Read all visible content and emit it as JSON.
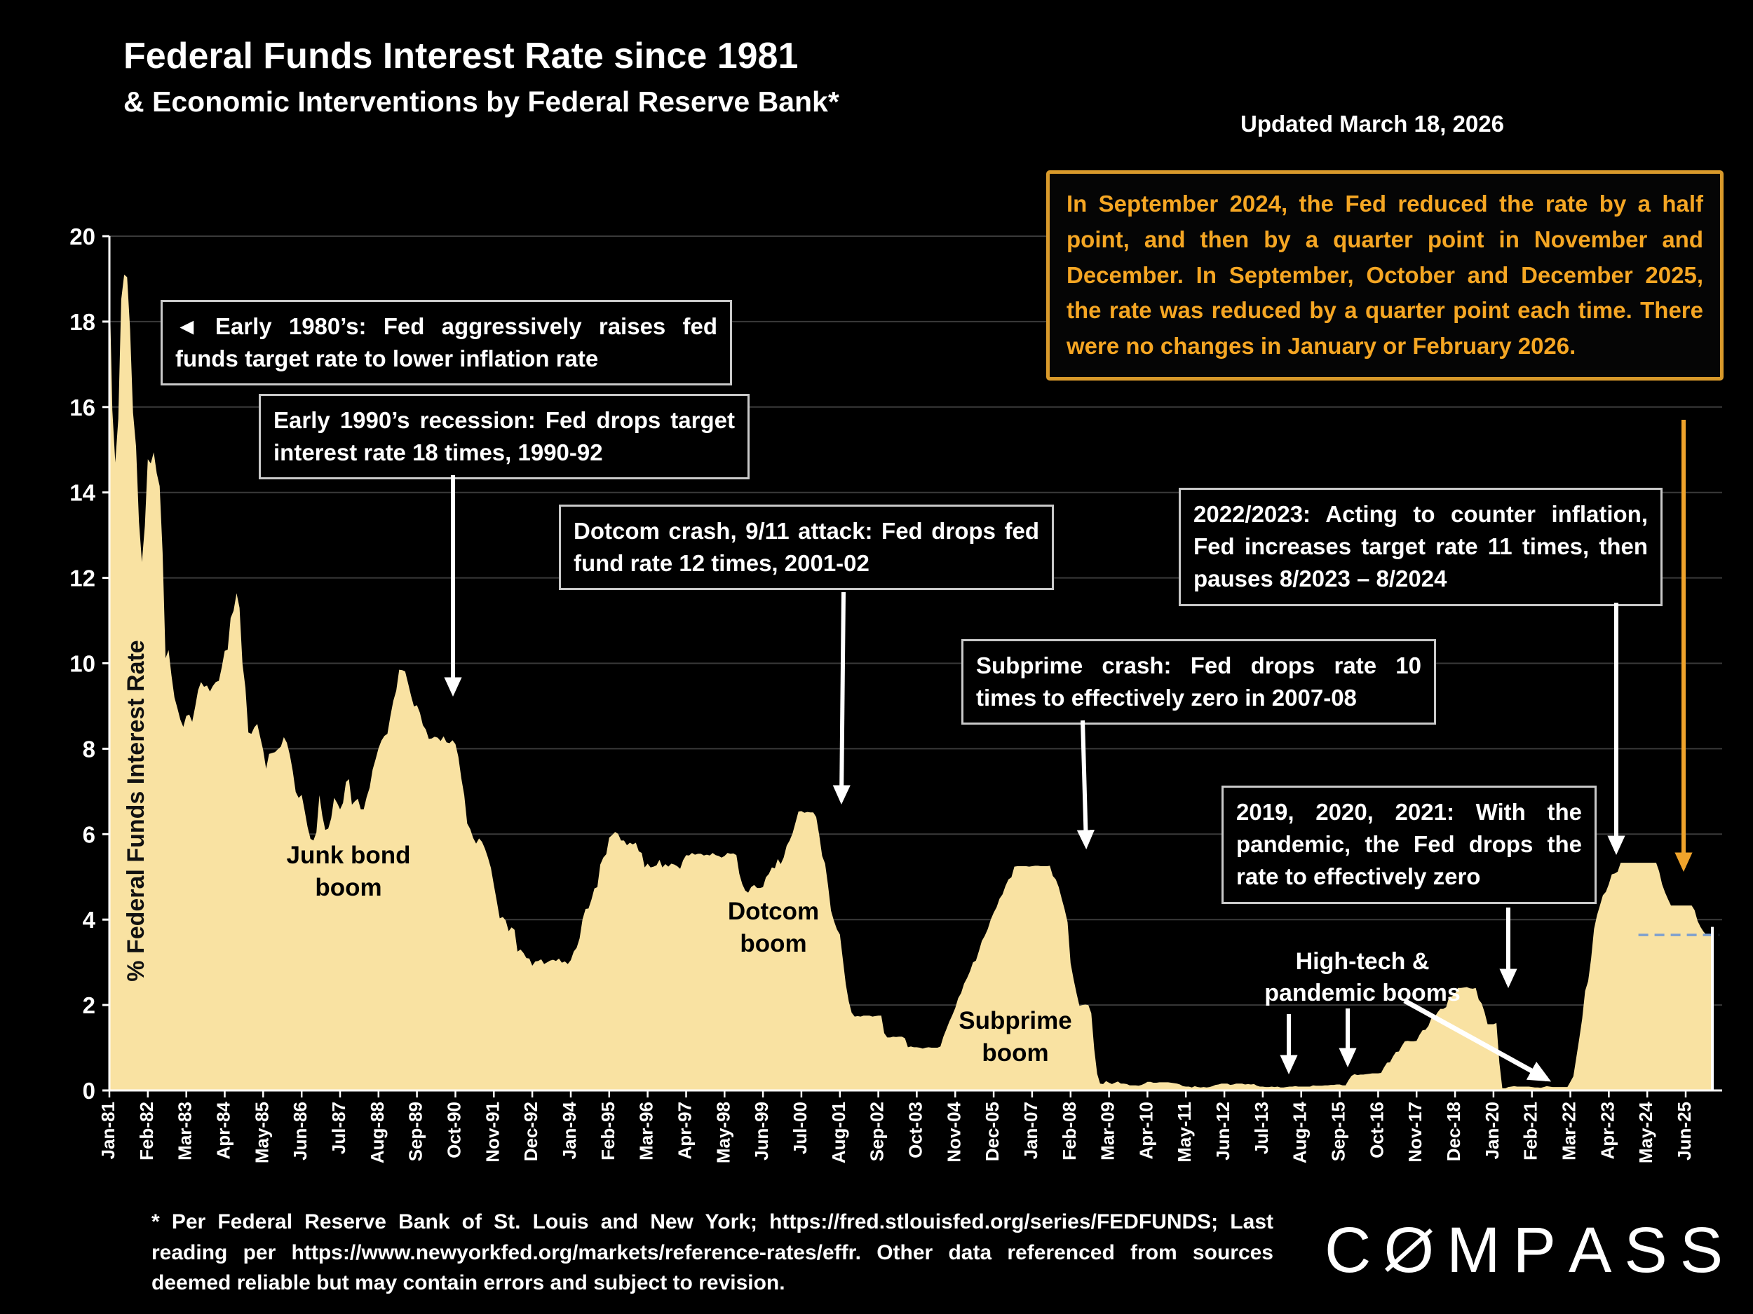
{
  "header": {
    "title": "Federal Funds Interest Rate since 1981",
    "subtitle": "& Economic Interventions by Federal Reserve Bank*",
    "updated": "Updated March 18, 2026"
  },
  "note_box": {
    "text": "In September 2024, the Fed reduced the rate by a half point, and then by a quarter point in November and December. In September, October and December 2025, the rate was reduced by a quarter point each time. There were no changes in January or February 2026.",
    "text_color": "#F5A623",
    "border_color": "#D99A2B"
  },
  "annotations": {
    "early_1980s": "◄ Early 1980’s: Fed aggressively raises fed funds target rate to lower inflation rate",
    "early_1990s": "Early 1990’s recession: Fed drops target interest rate 18 times, 1990-92",
    "dotcom_crash": "Dotcom crash, 9/11 attack: Fed drops fed fund rate 12 times, 2001-02",
    "subprime_crash": "Subprime crash: Fed drops rate 10 times to effectively zero in 2007-08",
    "inflation_2022_2023": "2022/2023: Acting to counter inflation, Fed increases target rate 11 times, then pauses 8/2023 – 8/2024",
    "pandemic_2019": "2019, 2020, 2021: With the pandemic, the Fed drops the rate to effectively zero",
    "hightech_pandemic_booms": "High-tech & pandemic booms",
    "junk_bond_boom": "Junk bond boom",
    "dotcom_boom": "Dotcom boom",
    "subprime_boom": "Subprime boom"
  },
  "chart_data": {
    "type": "area",
    "title": "Federal Funds Interest Rate since 1981",
    "ylabel": "% Federal Funds Interest Rate",
    "ylim": [
      0,
      20
    ],
    "ytick_step": 2,
    "grid": true,
    "area_color": "#F9E2A2",
    "x_start": "1981-01",
    "x_end": "2026-03",
    "x_tick_interval_months": 13,
    "x_tick_labels": [
      "Jan-81",
      "Feb-82",
      "Mar-83",
      "Apr-84",
      "May-85",
      "Jun-86",
      "Jul-87",
      "Aug-88",
      "Sep-89",
      "Oct-90",
      "Nov-91",
      "Dec-92",
      "Jan-94",
      "Feb-95",
      "Mar-96",
      "Apr-97",
      "May-98",
      "Jun-99",
      "Jul-00",
      "Aug-01",
      "Sep-02",
      "Oct-03",
      "Nov-04",
      "Dec-05",
      "Jan-07",
      "Feb-08",
      "Mar-09",
      "Apr-10",
      "May-11",
      "Jun-12",
      "Jul-13",
      "Aug-14",
      "Sep-15",
      "Oct-16",
      "Nov-17",
      "Dec-18",
      "Jan-20",
      "Feb-21",
      "Mar-22",
      "Apr-23",
      "May-24",
      "Jun-25"
    ],
    "dashed_reference_line": {
      "value": 3.64,
      "from_month_index": 517,
      "color": "#7EA0CE"
    },
    "last_reading_marker": {
      "month_index": 542,
      "value": 3.83
    },
    "values_monthly": [
      19.08,
      15.93,
      14.7,
      15.72,
      18.52,
      19.1,
      19.04,
      17.82,
      15.87,
      15.08,
      13.31,
      12.37,
      13.22,
      14.78,
      14.68,
      14.94,
      14.45,
      14.15,
      12.59,
      10.12,
      10.31,
      9.71,
      9.2,
      8.95,
      8.68,
      8.51,
      8.77,
      8.8,
      8.63,
      8.98,
      9.37,
      9.56,
      9.45,
      9.48,
      9.34,
      9.47,
      9.56,
      9.59,
      9.91,
      10.29,
      10.32,
      11.06,
      11.23,
      11.64,
      11.3,
      9.99,
      9.43,
      8.38,
      8.35,
      8.5,
      8.58,
      8.27,
      7.97,
      7.53,
      7.88,
      7.9,
      7.92,
      7.99,
      8.05,
      8.27,
      8.14,
      7.86,
      7.48,
      6.99,
      6.85,
      6.92,
      6.56,
      6.17,
      5.89,
      5.85,
      6.04,
      6.91,
      6.43,
      6.1,
      6.13,
      6.37,
      6.85,
      6.73,
      6.58,
      6.73,
      7.22,
      7.29,
      6.69,
      6.77,
      6.83,
      6.58,
      6.58,
      6.87,
      7.09,
      7.51,
      7.75,
      8.01,
      8.19,
      8.3,
      8.35,
      8.76,
      9.12,
      9.36,
      9.85,
      9.84,
      9.81,
      9.53,
      9.24,
      8.99,
      9.02,
      8.84,
      8.55,
      8.45,
      8.23,
      8.24,
      8.28,
      8.26,
      8.18,
      8.29,
      8.15,
      8.13,
      8.2,
      8.11,
      7.81,
      7.31,
      6.91,
      6.25,
      6.12,
      5.91,
      5.78,
      5.9,
      5.82,
      5.66,
      5.45,
      5.21,
      4.81,
      4.43,
      4.03,
      4.06,
      3.98,
      3.73,
      3.82,
      3.76,
      3.25,
      3.3,
      3.22,
      3.1,
      3.09,
      2.92,
      3.02,
      3.03,
      3.07,
      2.96,
      3.0,
      3.04,
      3.06,
      3.03,
      3.09,
      2.99,
      3.02,
      2.96,
      3.05,
      3.25,
      3.34,
      3.56,
      4.01,
      4.25,
      4.26,
      4.47,
      4.73,
      4.76,
      5.29,
      5.45,
      5.53,
      5.92,
      5.98,
      6.05,
      6.01,
      5.85,
      5.85,
      5.74,
      5.8,
      5.76,
      5.8,
      5.6,
      5.56,
      5.22,
      5.31,
      5.22,
      5.24,
      5.27,
      5.4,
      5.22,
      5.3,
      5.24,
      5.31,
      5.29,
      5.25,
      5.19,
      5.39,
      5.51,
      5.5,
      5.56,
      5.52,
      5.54,
      5.54,
      5.5,
      5.52,
      5.5,
      5.56,
      5.51,
      5.49,
      5.45,
      5.49,
      5.56,
      5.54,
      5.55,
      5.51,
      5.07,
      4.83,
      4.68,
      4.63,
      4.76,
      4.81,
      4.74,
      4.74,
      4.76,
      4.99,
      5.07,
      5.22,
      5.2,
      5.42,
      5.3,
      5.45,
      5.73,
      5.85,
      6.02,
      6.27,
      6.53,
      6.54,
      6.5,
      6.52,
      6.51,
      6.51,
      6.4,
      5.98,
      5.49,
      5.31,
      4.8,
      4.21,
      3.97,
      3.77,
      3.65,
      3.07,
      2.49,
      2.09,
      1.82,
      1.73,
      1.74,
      1.73,
      1.75,
      1.75,
      1.75,
      1.73,
      1.74,
      1.75,
      1.75,
      1.34,
      1.24,
      1.24,
      1.26,
      1.25,
      1.26,
      1.26,
      1.22,
      1.01,
      1.03,
      1.01,
      1.01,
      1.0,
      0.98,
      1.0,
      1.01,
      1.0,
      1.0,
      1.0,
      1.03,
      1.26,
      1.43,
      1.61,
      1.76,
      1.93,
      2.16,
      2.28,
      2.5,
      2.63,
      2.79,
      3.0,
      3.04,
      3.26,
      3.5,
      3.62,
      3.78,
      4.0,
      4.16,
      4.29,
      4.49,
      4.59,
      4.79,
      4.94,
      4.99,
      5.24,
      5.25,
      5.25,
      5.25,
      5.25,
      5.24,
      5.25,
      5.26,
      5.26,
      5.25,
      5.25,
      5.25,
      5.26,
      5.02,
      4.94,
      4.76,
      4.49,
      4.24,
      3.94,
      2.98,
      2.61,
      2.28,
      1.98,
      2.0,
      2.01,
      2.0,
      1.81,
      0.97,
      0.39,
      0.16,
      0.15,
      0.22,
      0.18,
      0.15,
      0.18,
      0.21,
      0.16,
      0.16,
      0.15,
      0.12,
      0.12,
      0.12,
      0.11,
      0.13,
      0.16,
      0.2,
      0.2,
      0.18,
      0.18,
      0.19,
      0.19,
      0.19,
      0.19,
      0.18,
      0.17,
      0.16,
      0.14,
      0.1,
      0.09,
      0.09,
      0.07,
      0.1,
      0.08,
      0.07,
      0.08,
      0.07,
      0.08,
      0.1,
      0.13,
      0.14,
      0.16,
      0.16,
      0.16,
      0.13,
      0.14,
      0.16,
      0.16,
      0.16,
      0.14,
      0.15,
      0.14,
      0.15,
      0.11,
      0.09,
      0.09,
      0.08,
      0.08,
      0.09,
      0.08,
      0.09,
      0.07,
      0.07,
      0.08,
      0.09,
      0.09,
      0.1,
      0.09,
      0.09,
      0.09,
      0.09,
      0.09,
      0.12,
      0.11,
      0.11,
      0.11,
      0.12,
      0.12,
      0.13,
      0.13,
      0.14,
      0.14,
      0.12,
      0.12,
      0.24,
      0.34,
      0.38,
      0.36,
      0.37,
      0.37,
      0.38,
      0.39,
      0.4,
      0.4,
      0.4,
      0.41,
      0.54,
      0.65,
      0.66,
      0.79,
      0.9,
      0.91,
      1.04,
      1.15,
      1.16,
      1.15,
      1.15,
      1.16,
      1.3,
      1.41,
      1.42,
      1.51,
      1.69,
      1.7,
      1.82,
      1.91,
      1.91,
      1.95,
      2.19,
      2.2,
      2.27,
      2.4,
      2.4,
      2.41,
      2.42,
      2.39,
      2.38,
      2.4,
      2.13,
      2.04,
      1.83,
      1.55,
      1.55,
      1.55,
      1.58,
      0.65,
      0.05,
      0.05,
      0.08,
      0.09,
      0.1,
      0.09,
      0.09,
      0.09,
      0.09,
      0.09,
      0.08,
      0.07,
      0.07,
      0.06,
      0.08,
      0.1,
      0.09,
      0.08,
      0.08,
      0.08,
      0.08,
      0.08,
      0.08,
      0.2,
      0.33,
      0.77,
      1.21,
      1.68,
      2.33,
      2.56,
      3.08,
      3.78,
      4.1,
      4.33,
      4.57,
      4.65,
      4.83,
      5.06,
      5.08,
      5.12,
      5.33,
      5.33,
      5.33,
      5.33,
      5.33,
      5.33,
      5.33,
      5.33,
      5.33,
      5.33,
      5.33,
      5.33,
      5.33,
      5.13,
      4.83,
      4.64,
      4.48,
      4.33,
      4.33,
      4.33,
      4.33,
      4.33,
      4.33,
      4.33,
      4.33,
      4.22,
      3.97,
      3.83,
      3.72,
      3.64,
      3.64,
      3.64
    ]
  },
  "footer": {
    "disclaimer": "* Per Federal Reserve Bank of St. Louis and New York; https://fred.stlouisfed.org/series/FEDFUNDS; Last reading per https://www.newyorkfed.org/markets/reference-rates/effr. Other data referenced from sources deemed reliable but may contain errors and subject to revision.",
    "brand": "COMPASS"
  }
}
